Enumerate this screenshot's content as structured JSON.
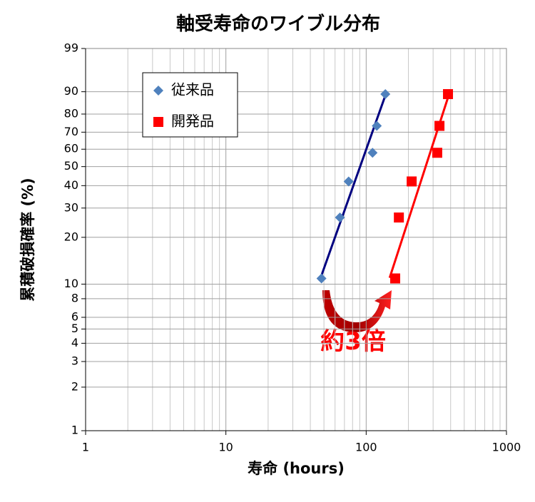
{
  "chart_data": {
    "type": "scatter",
    "title": "軸受寿命のワイブル分布",
    "x_label": "寿命 (hours)",
    "y_label": "累積破損確率 (%)",
    "x_scale": "log",
    "y_scale": "weibull",
    "xlim": [
      1,
      1000
    ],
    "xticks": [
      1,
      10,
      100,
      1000
    ],
    "ylim": [
      1,
      99
    ],
    "yticks": [
      1,
      2,
      3,
      4,
      5,
      6,
      8,
      10,
      20,
      30,
      40,
      50,
      60,
      70,
      80,
      90,
      99
    ],
    "grid": true,
    "legend": "upper left",
    "series": [
      {
        "name": "従来品",
        "color": "#4f81bd",
        "marker": "diamond",
        "x": [
          48,
          65,
          75,
          111,
          119,
          137
        ],
        "values": [
          10.9,
          26.4,
          42.1,
          57.9,
          73.6,
          89.1
        ]
      },
      {
        "name": "開発品",
        "color": "#ff0000",
        "marker": "square",
        "x": [
          161,
          171,
          211,
          321,
          333,
          383
        ],
        "values": [
          10.9,
          26.4,
          42.1,
          57.9,
          73.6,
          89.1
        ]
      }
    ],
    "fit_lines": [
      {
        "color": "#000080",
        "x": [
          46.5,
          140
        ],
        "values": [
          10.5,
          90
        ]
      },
      {
        "color": "#ff0000",
        "x": [
          147,
          395
        ],
        "values": [
          11,
          90
        ]
      }
    ],
    "annotation": "約3倍"
  }
}
